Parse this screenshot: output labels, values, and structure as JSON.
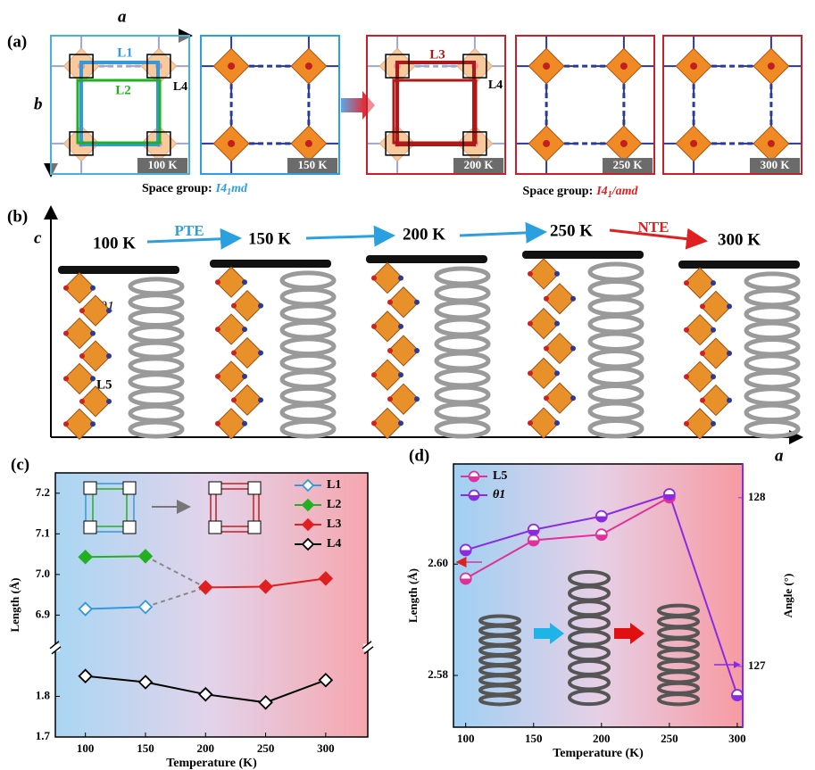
{
  "panel_a": {
    "label": "(a)",
    "axis_a": "a",
    "axis_b": "b",
    "box1": {
      "L1": "L1",
      "L2": "L2",
      "L4": "L4"
    },
    "box3": {
      "L3": "L3",
      "L4": "L4"
    },
    "temps": [
      "100 K",
      "150 K",
      "200 K",
      "250 K",
      "300 K"
    ],
    "space_groups": [
      {
        "prefix": "Space group:",
        "name": "I4",
        "sub": "1",
        "suffix": "md"
      },
      {
        "prefix": "Space group:",
        "name": "I4",
        "sub": "1",
        "suffix": "/amd"
      }
    ]
  },
  "panel_b": {
    "label": "(b)",
    "axis_c": "c",
    "axis_a": "a",
    "temps": [
      "100 K",
      "150 K",
      "200 K",
      "250 K",
      "300 K"
    ],
    "pte": "PTE",
    "nte": "NTE",
    "theta": "θ1",
    "l5": "L5"
  },
  "chart_data": [
    {
      "type": "line",
      "label": "(c)",
      "xlabel": "Temperature (K)",
      "ylabel": "Length (Å)",
      "x": [
        100,
        150,
        200,
        250,
        300
      ],
      "xlim": [
        75,
        335
      ],
      "xticks": [
        100,
        150,
        200,
        250,
        300
      ],
      "ylim": [
        1.7,
        7.25
      ],
      "ybreak": [
        1.92,
        6.82
      ],
      "yticks": [
        1.7,
        1.8,
        6.9,
        {
          "value": 7,
          "label": "7.0"
        },
        7.1,
        7.2
      ],
      "series": [
        {
          "name": "L1",
          "color": "#3399dd",
          "filled": false,
          "values": [
            6.915,
            6.92,
            null,
            null,
            null
          ]
        },
        {
          "name": "L2",
          "color": "#22b022",
          "filled": true,
          "values": [
            7.043,
            7.045,
            null,
            null,
            null
          ]
        },
        {
          "name": "L3",
          "color": "#e02020",
          "filled": true,
          "values": [
            null,
            null,
            6.968,
            6.97,
            6.99
          ]
        },
        {
          "name": "L4",
          "color": "#000000",
          "filled": false,
          "values": [
            1.85,
            1.835,
            1.805,
            1.785,
            1.84
          ]
        }
      ]
    },
    {
      "type": "line",
      "label": "(d)",
      "xlabel": "Temperature (K)",
      "ylabel": "Length (Å)",
      "y2label": "Angle (°)",
      "x": [
        100,
        150,
        200,
        250,
        300
      ],
      "xlim": [
        91,
        304
      ],
      "xticks": [
        100,
        150,
        200,
        250,
        300
      ],
      "ylim": [
        2.5707,
        2.618
      ],
      "yticks": [
        2.58,
        {
          "value": 2.6,
          "label": "2.60"
        }
      ],
      "y2lim": [
        126.64,
        128.2
      ],
      "y2ticks": [
        127,
        128
      ],
      "series": [
        {
          "name": "L5",
          "color": "#e0309a",
          "values": [
            2.5974,
            2.6043,
            2.6053,
            2.612,
            null
          ]
        },
        {
          "name": "θ1",
          "color": "#8a2be2",
          "axis": "y2",
          "values": [
            127.69,
            127.81,
            127.89,
            128.02,
            126.83
          ]
        }
      ]
    }
  ]
}
